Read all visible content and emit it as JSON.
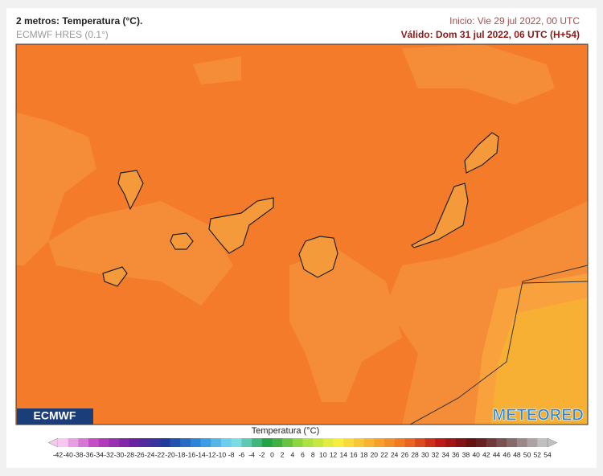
{
  "header": {
    "title": "2 metros: Temperatura (°C).",
    "model": "ECMWF HRES (0.1°)",
    "init": "Inicio: Vie 29 jul 2022, 00 UTC",
    "valid": "Válido: Dom 31 jul 2022, 06 UTC (H+54)"
  },
  "logos": {
    "left": "ECMWF",
    "right": "METEORED"
  },
  "legend": {
    "title": "Temperatura (°C)",
    "ticks": [
      -42,
      -40,
      -38,
      -36,
      -34,
      -32,
      -30,
      -28,
      -26,
      -24,
      -22,
      -20,
      -18,
      -16,
      -14,
      -12,
      -10,
      -8,
      -6,
      -4,
      -2,
      0,
      2,
      4,
      6,
      8,
      10,
      12,
      14,
      16,
      18,
      20,
      22,
      24,
      26,
      28,
      30,
      32,
      34,
      36,
      38,
      40,
      42,
      44,
      46,
      48,
      50,
      52,
      54
    ]
  }
}
